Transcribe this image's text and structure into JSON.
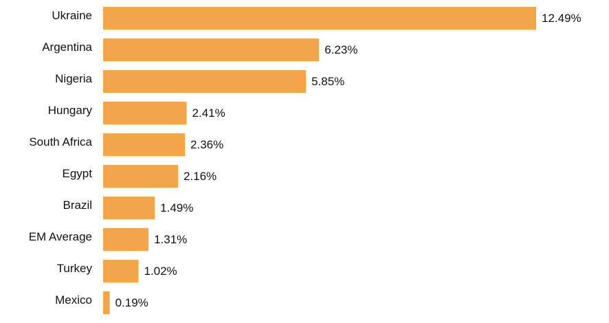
{
  "chart_data": {
    "type": "bar",
    "orientation": "horizontal",
    "categories": [
      "Ukraine",
      "Argentina",
      "Nigeria",
      "Hungary",
      "South Africa",
      "Egypt",
      "Brazil",
      "EM Average",
      "Turkey",
      "Mexico"
    ],
    "values": [
      12.49,
      6.23,
      5.85,
      2.41,
      2.36,
      2.16,
      1.49,
      1.31,
      1.02,
      0.19
    ],
    "value_labels": [
      "12.49%",
      "6.23%",
      "5.85%",
      "2.41%",
      "2.36%",
      "2.16%",
      "1.49%",
      "1.31%",
      "1.02%",
      "0.19%"
    ],
    "xlim": [
      0,
      12.49
    ],
    "grid": false,
    "bar_color": "#F2A649",
    "title": "",
    "xlabel": "",
    "ylabel": ""
  }
}
